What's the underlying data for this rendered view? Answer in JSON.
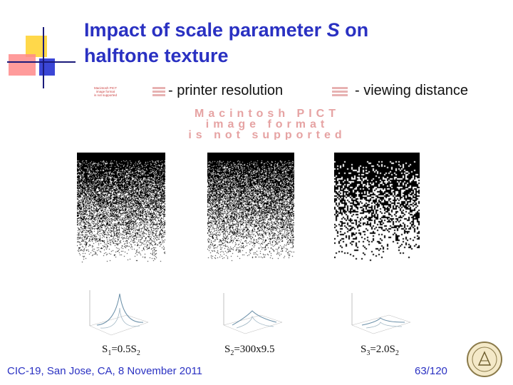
{
  "slide": {
    "title_line1_prefix": "Impact of scale parameter ",
    "title_var": "S",
    "title_line1_suffix": " on",
    "title_line2": "halftone texture",
    "labels": {
      "printer": "- printer resolution",
      "viewing": "- viewing distance"
    },
    "pict_notice": "Macintosh PICT image format is not supported",
    "captions": [
      {
        "prefix": "S",
        "sub1": "1",
        "mid": "=0.5S",
        "sub2": "2"
      },
      {
        "prefix": "S",
        "sub1": "2",
        "mid": "=300x9.5",
        "sub2": ""
      },
      {
        "prefix": "S",
        "sub1": "3",
        "mid": "=2.0S",
        "sub2": "2"
      }
    ],
    "footer": {
      "left": "CIC-19, San Jose, CA, 8 November 2011",
      "right": "63/120"
    }
  },
  "colors": {
    "title": "#2a31c2",
    "accent_yellow": "#ffd84a",
    "accent_red": "#ff8a8a",
    "accent_blue": "#3b46d6"
  }
}
